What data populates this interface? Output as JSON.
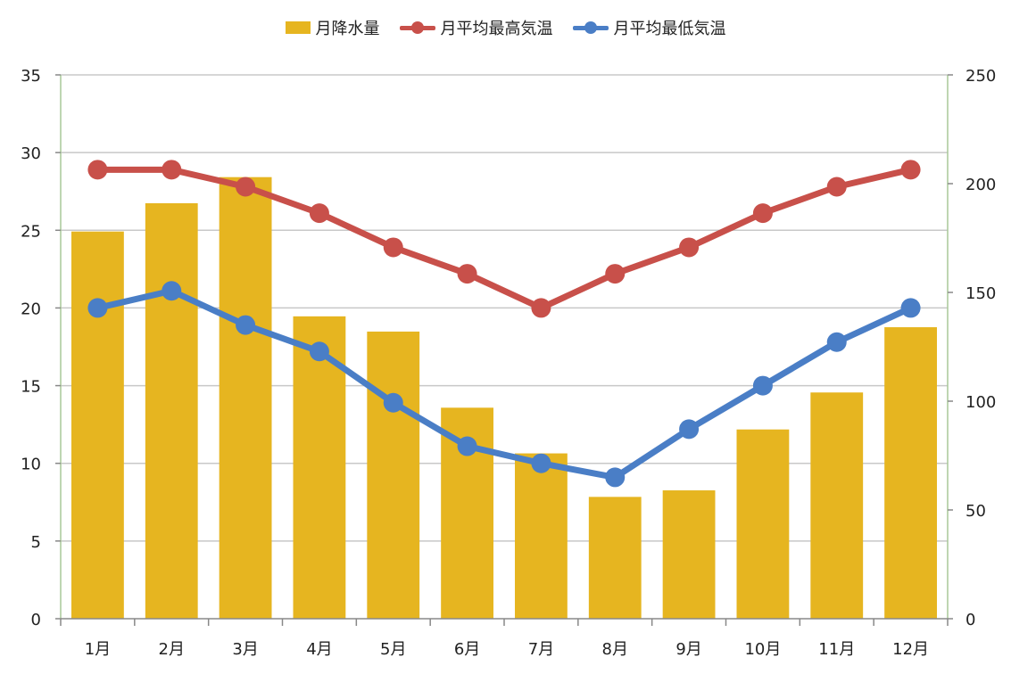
{
  "chart_data": {
    "type": "bar+line",
    "categories": [
      "1月",
      "2月",
      "3月",
      "4月",
      "5月",
      "6月",
      "7月",
      "8月",
      "9月",
      "10月",
      "11月",
      "12月"
    ],
    "series": [
      {
        "name": "月降水量",
        "type": "bar",
        "axis": "right",
        "color": "#E6B520",
        "values": [
          178,
          191,
          203,
          139,
          132,
          97,
          76,
          56,
          59,
          87,
          104,
          134
        ]
      },
      {
        "name": "月平均最高気温",
        "type": "line",
        "axis": "left",
        "color": "#C8504A",
        "values": [
          28.9,
          28.9,
          27.8,
          26.1,
          23.9,
          22.2,
          20.0,
          22.2,
          23.9,
          26.1,
          27.8,
          28.9
        ]
      },
      {
        "name": "月平均最低気温",
        "type": "line",
        "axis": "left",
        "color": "#4A7EC6",
        "values": [
          20.0,
          21.1,
          18.9,
          17.2,
          13.9,
          11.1,
          10.0,
          9.1,
          12.2,
          15.0,
          17.8,
          20.0
        ]
      }
    ],
    "y_left": {
      "min": 0,
      "max": 35,
      "ticks": [
        0,
        5,
        10,
        15,
        20,
        25,
        30,
        35
      ]
    },
    "y_right": {
      "min": 0,
      "max": 250,
      "ticks": [
        0,
        50,
        100,
        150,
        200,
        250
      ]
    },
    "grid": true,
    "legend_position": "top-center"
  }
}
